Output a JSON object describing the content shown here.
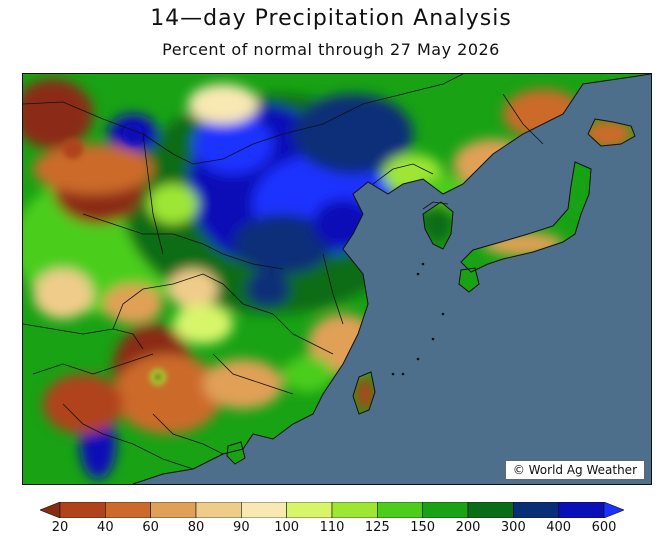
{
  "header": {
    "title": "14—day Precipitation Analysis",
    "subtitle": "Percent of normal through 27 May 2026"
  },
  "map": {
    "credit": "© World Ag Weather",
    "ocean_color": "#4e6f8c"
  },
  "legend": {
    "labels": [
      "20",
      "40",
      "60",
      "80",
      "90",
      "100",
      "110",
      "125",
      "150",
      "200",
      "300",
      "400",
      "600"
    ],
    "colors": [
      "#8b2a12",
      "#b0421c",
      "#cc6a2c",
      "#e0a056",
      "#f0cc8a",
      "#f8e8b2",
      "#d8f56a",
      "#9ee634",
      "#4ccd1c",
      "#18a214",
      "#0b6c18",
      "#0a2d78",
      "#0b0fb8",
      "#1a31ff"
    ]
  }
}
